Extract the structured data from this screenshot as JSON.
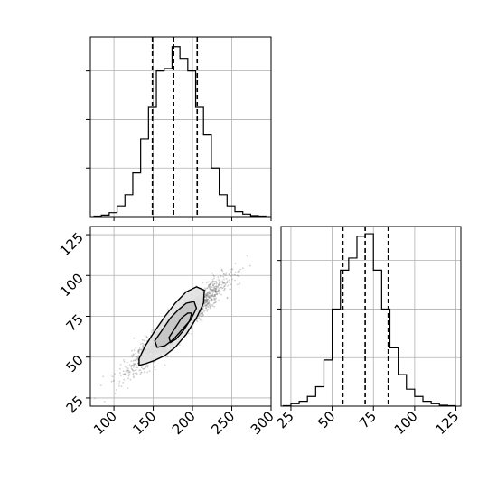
{
  "chart_data": [
    {
      "type": "histogram",
      "panel": "x1-marginal",
      "bins_x": [
        74,
        84,
        94,
        104,
        114,
        124,
        134,
        144,
        154,
        164,
        174,
        184,
        194,
        204,
        214,
        224,
        234,
        244,
        254,
        264,
        274,
        284,
        294
      ],
      "heights": [
        1,
        3,
        8,
        22,
        45,
        90,
        160,
        225,
        300,
        305,
        350,
        326,
        300,
        225,
        168,
        100,
        45,
        22,
        10,
        5,
        2,
        1
      ],
      "quantiles": [
        149,
        176,
        206
      ],
      "xlim": [
        70,
        300
      ],
      "ylim": [
        0,
        370
      ],
      "grid": true,
      "tick_labels_shown": false
    },
    {
      "type": "histogram",
      "panel": "x2-marginal",
      "bins_x": [
        20,
        25,
        30,
        35,
        40,
        45,
        50,
        55,
        60,
        65,
        70,
        75,
        80,
        85,
        90,
        95,
        100,
        105,
        110,
        115,
        120,
        125
      ],
      "heights": [
        1,
        5,
        10,
        20,
        40,
        95,
        200,
        280,
        305,
        350,
        355,
        280,
        200,
        120,
        65,
        35,
        20,
        10,
        5,
        2,
        1
      ],
      "quantiles": [
        56.5,
        70,
        84
      ],
      "xlim": [
        19,
        128
      ],
      "ylim": [
        0,
        370
      ],
      "grid": true,
      "xticks": [
        "25",
        "50",
        "75",
        "100",
        "125"
      ]
    },
    {
      "type": "scatter",
      "panel": "joint-density",
      "x_mean": 181,
      "y_mean": 70,
      "x_sd": 28,
      "y_sd": 13,
      "correlation": 0.94,
      "contours": [
        [
          [
            132,
            49
          ],
          [
            140,
            57
          ],
          [
            152,
            66
          ],
          [
            165,
            75
          ],
          [
            178,
            83
          ],
          [
            192,
            90
          ],
          [
            205,
            93
          ],
          [
            215,
            91
          ],
          [
            214,
            83
          ],
          [
            205,
            74
          ],
          [
            192,
            64
          ],
          [
            178,
            56
          ],
          [
            165,
            51
          ],
          [
            152,
            48
          ],
          [
            140,
            46
          ],
          [
            132,
            45
          ]
        ],
        [
          [
            152,
            60
          ],
          [
            162,
            67
          ],
          [
            172,
            74
          ],
          [
            182,
            79
          ],
          [
            192,
            83
          ],
          [
            202,
            84
          ],
          [
            205,
            80
          ],
          [
            198,
            73
          ],
          [
            187,
            67
          ],
          [
            176,
            61
          ],
          [
            165,
            57
          ],
          [
            155,
            56
          ]
        ],
        [
          [
            170,
            62
          ],
          [
            178,
            68
          ],
          [
            186,
            74
          ],
          [
            194,
            77
          ],
          [
            199,
            77
          ],
          [
            196,
            72
          ],
          [
            188,
            66
          ],
          [
            179,
            61
          ],
          [
            172,
            59
          ]
        ]
      ],
      "density_cells": [
        {
          "x": 171,
          "y": 61,
          "level": 0.6
        },
        {
          "x": 179,
          "y": 68,
          "level": 0.9
        },
        {
          "x": 187,
          "y": 72,
          "level": 0.8
        },
        {
          "x": 195,
          "y": 76,
          "level": 0.5
        },
        {
          "x": 163,
          "y": 56,
          "level": 0.4
        }
      ],
      "xlim": [
        70,
        300
      ],
      "ylim": [
        20,
        130
      ],
      "xticks": [
        "100",
        "150",
        "200",
        "250",
        "300"
      ],
      "yticks": [
        "25",
        "50",
        "75",
        "100",
        "125"
      ]
    }
  ],
  "colors": {
    "line": "#000000",
    "grid": "#b0b0b0",
    "points": "#7a7a7a",
    "contour_fill_outer": "#e2e2e2",
    "contour_fill_mid": "#c4c4c4"
  }
}
